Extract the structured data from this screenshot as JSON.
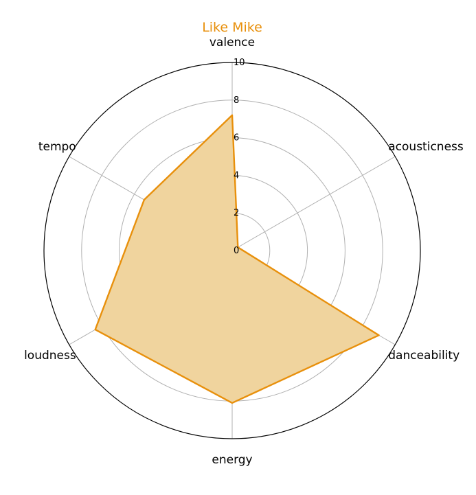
{
  "chart_data": {
    "type": "radar",
    "title": "Like Mike",
    "axes": [
      "valence",
      "acousticness",
      "danceability",
      "energy",
      "loudness",
      "tempo"
    ],
    "series": [
      {
        "values": [
          7.2,
          0.35,
          9.0,
          8.1,
          8.4,
          5.4
        ]
      }
    ],
    "rlim": [
      0,
      10
    ],
    "rticks": [
      0,
      2,
      4,
      6,
      8,
      10
    ],
    "grid": true,
    "colors": {
      "line": "#e8900c",
      "fill": "#f0d49e",
      "title": "#e8900c",
      "grid": "#b0b0b0",
      "spine": "#000000"
    }
  }
}
